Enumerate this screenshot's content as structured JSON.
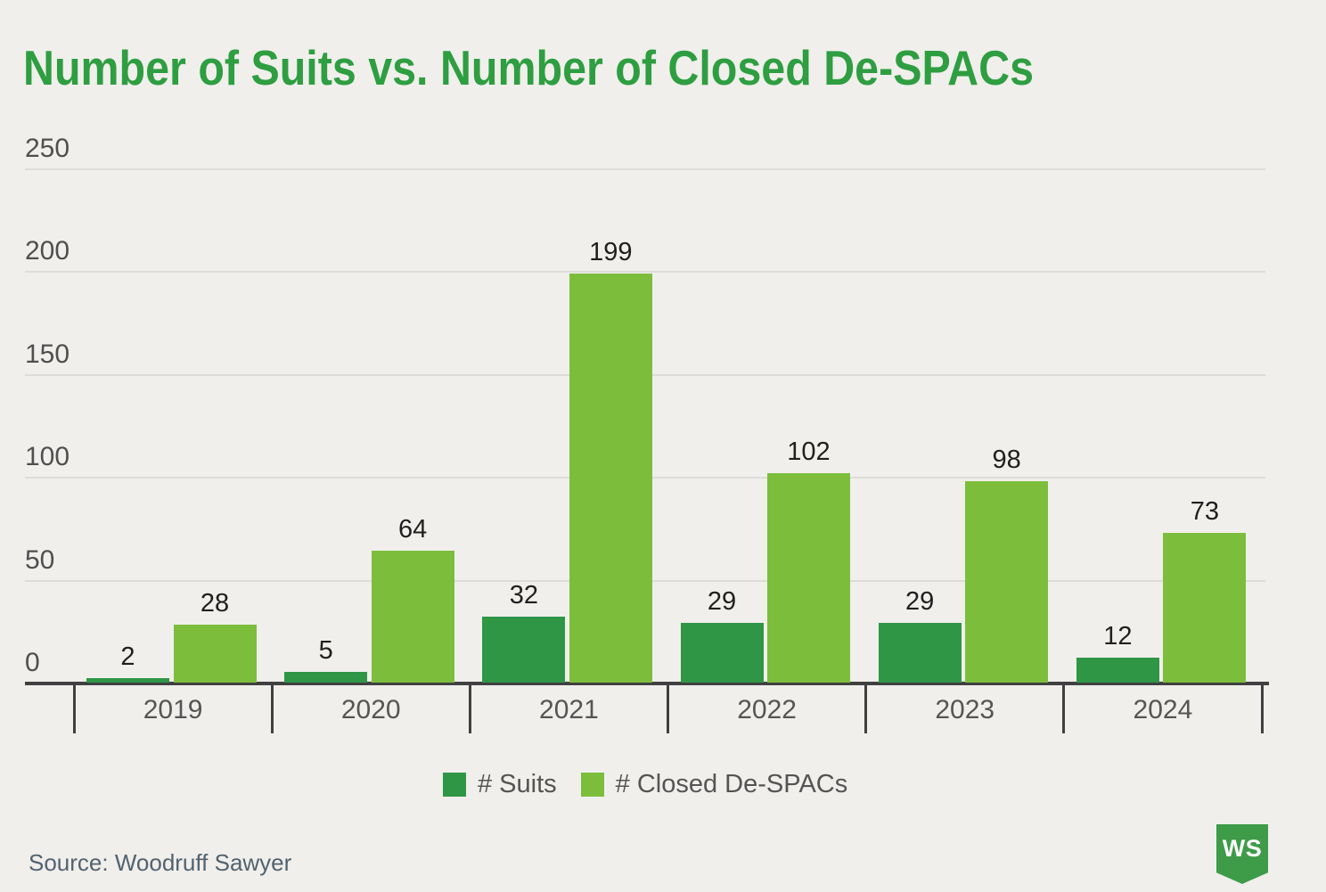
{
  "title": "Number of Suits vs. Number of Closed De-SPACs",
  "source": "Source: Woodruff Sawyer",
  "logo": {
    "text": "WS"
  },
  "legend": {
    "items": [
      {
        "label": "# Suits",
        "color": "#2f9646"
      },
      {
        "label": "# Closed De-SPACs",
        "color": "#7cbe3c"
      }
    ]
  },
  "colors": {
    "background": "#f0efec",
    "title": "#2e9e41",
    "grid": "#dddcd9",
    "axis": "#404040",
    "suits_bar": "#2f9646",
    "despacs_bar": "#7cbe3c",
    "logo_green": "#3e9b48"
  },
  "chart_data": {
    "type": "bar",
    "title": "Number of Suits vs. Number of Closed De-SPACs",
    "categories": [
      "2019",
      "2020",
      "2021",
      "2022",
      "2023",
      "2024"
    ],
    "series": [
      {
        "name": "# Suits",
        "color": "#2f9646",
        "values": [
          2,
          5,
          32,
          29,
          29,
          12
        ]
      },
      {
        "name": "# Closed De-SPACs",
        "color": "#7cbe3c",
        "values": [
          28,
          64,
          199,
          102,
          98,
          73
        ]
      }
    ],
    "xlabel": "",
    "ylabel": "",
    "ylim": [
      0,
      250
    ],
    "yticks": [
      0,
      50,
      100,
      150,
      200,
      250
    ],
    "grid": true,
    "legend_position": "bottom",
    "value_labels": true
  }
}
